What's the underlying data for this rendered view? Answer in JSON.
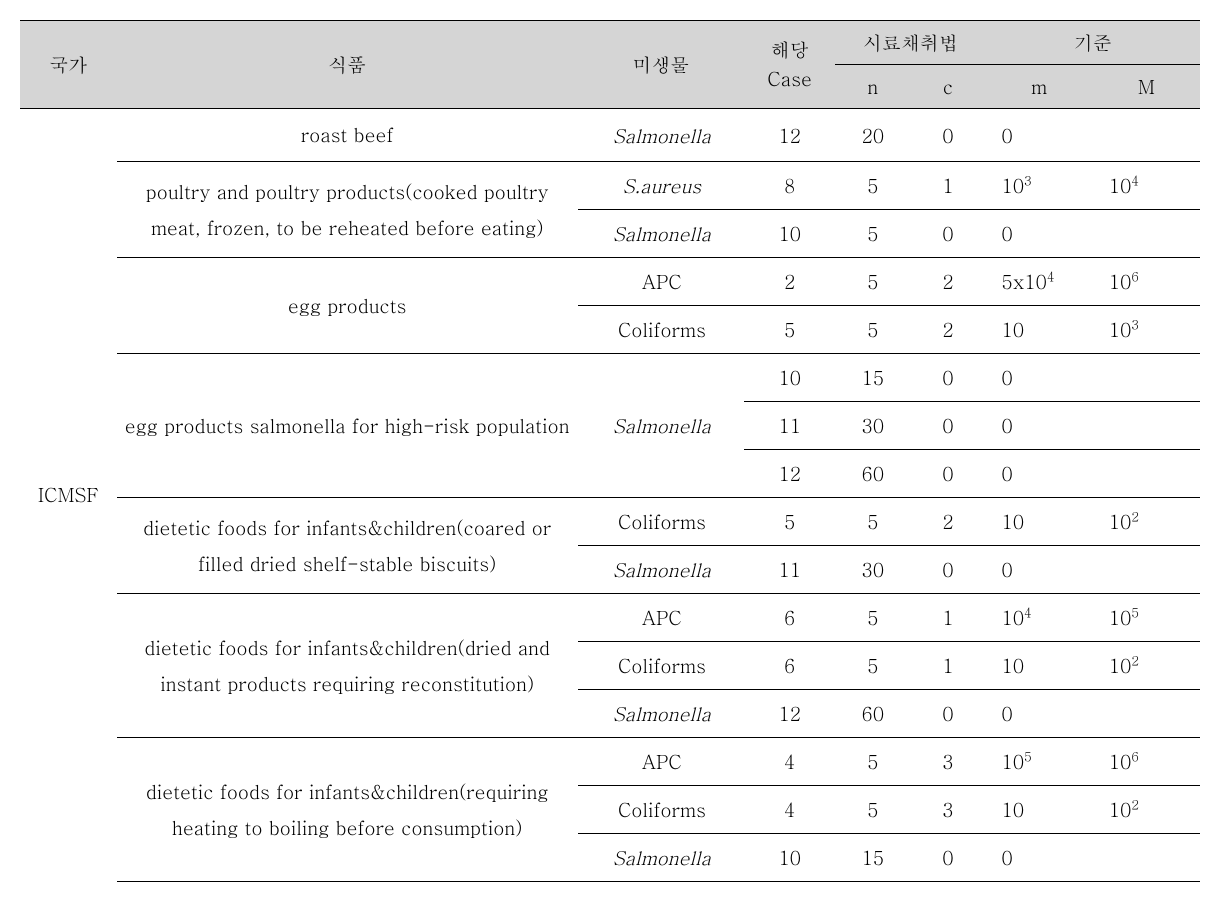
{
  "header": {
    "country": "국가",
    "food": "식품",
    "microbe": "미생물",
    "case": "해당 Case",
    "sampling": "시료채취법",
    "n": "n",
    "c": "c",
    "criteria": "기준",
    "m": "m",
    "M": "M"
  },
  "country": "ICMSF",
  "foods": {
    "f0": "roast beef",
    "f1": "poultry and poultry products(cooked poultry meat, frozen, to be reheated before eating)",
    "f2": "egg products",
    "f3": "egg products salmonella for high-risk population",
    "f4": "dietetic foods for infants&children(coared or filled dried shelf-stable biscuits)",
    "f5": "dietetic foods for infants&children(dried and instant products requiring reconstitution)",
    "f6": "dietetic foods for infants&children(requiring heating to boiling before consumption)"
  },
  "microbes": {
    "salmonella": "Salmonella",
    "saureus": "S.aureus",
    "apc": "APC",
    "coliforms": "Coliforms"
  },
  "rows": {
    "r0": {
      "case": "12",
      "n": "20",
      "c": "0",
      "m": "0",
      "M": ""
    },
    "r1": {
      "case": "8",
      "n": "5",
      "c": "1",
      "m_base": "10",
      "m_sup": "3",
      "M_base": "10",
      "M_sup": "4"
    },
    "r2": {
      "case": "10",
      "n": "5",
      "c": "0",
      "m": "0",
      "M": ""
    },
    "r3": {
      "case": "2",
      "n": "5",
      "c": "2",
      "m_base": "5x10",
      "m_sup": "4",
      "M_base": "10",
      "M_sup": "6"
    },
    "r4": {
      "case": "5",
      "n": "5",
      "c": "2",
      "m": "10",
      "M_base": "10",
      "M_sup": "3"
    },
    "r5": {
      "case": "10",
      "n": "15",
      "c": "0",
      "m": "0",
      "M": ""
    },
    "r6": {
      "case": "11",
      "n": "30",
      "c": "0",
      "m": "0",
      "M": ""
    },
    "r7": {
      "case": "12",
      "n": "60",
      "c": "0",
      "m": "0",
      "M": ""
    },
    "r8": {
      "case": "5",
      "n": "5",
      "c": "2",
      "m": "10",
      "M_base": "10",
      "M_sup": "2"
    },
    "r9": {
      "case": "11",
      "n": "30",
      "c": "0",
      "m": "0",
      "M": ""
    },
    "r10": {
      "case": "6",
      "n": "5",
      "c": "1",
      "m_base": "10",
      "m_sup": "4",
      "M_base": "10",
      "M_sup": "5"
    },
    "r11": {
      "case": "6",
      "n": "5",
      "c": "1",
      "m": "10",
      "M_base": "10",
      "M_sup": "2"
    },
    "r12": {
      "case": "12",
      "n": "60",
      "c": "0",
      "m": "0",
      "M": ""
    },
    "r13": {
      "case": "4",
      "n": "5",
      "c": "3",
      "m_base": "10",
      "m_sup": "5",
      "M_base": "10",
      "M_sup": "6"
    },
    "r14": {
      "case": "4",
      "n": "5",
      "c": "3",
      "m": "10",
      "M_base": "10",
      "M_sup": "2"
    },
    "r15": {
      "case": "10",
      "n": "15",
      "c": "0",
      "m": "0",
      "M": ""
    }
  }
}
